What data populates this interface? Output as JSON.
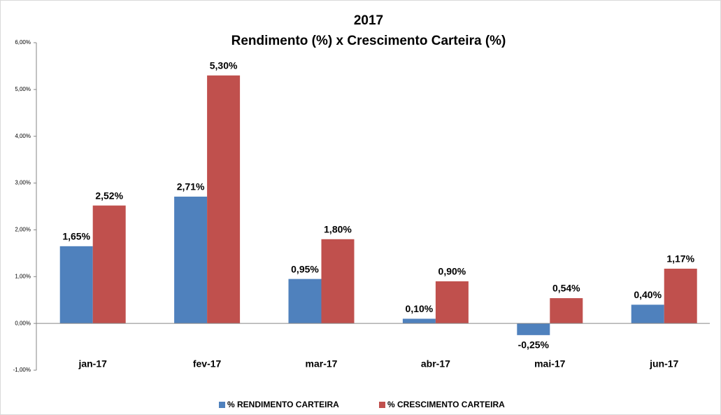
{
  "chart_data": {
    "type": "bar",
    "title": "2017",
    "subtitle": "Rendimento (%)  x  Crescimento Carteira (%)",
    "categories": [
      "jan-17",
      "fev-17",
      "mar-17",
      "abr-17",
      "mai-17",
      "jun-17"
    ],
    "series": [
      {
        "name": "% RENDIMENTO CARTEIRA",
        "color": "#4f81bd",
        "values": [
          1.65,
          2.71,
          0.95,
          0.1,
          -0.25,
          0.4
        ],
        "value_labels": [
          "1,65%",
          "2,71%",
          "0,95%",
          "0,10%",
          "-0,25%",
          "0,40%"
        ]
      },
      {
        "name": "% CRESCIMENTO CARTEIRA",
        "color": "#c0504d",
        "values": [
          2.52,
          5.3,
          1.8,
          0.9,
          0.54,
          1.17
        ],
        "value_labels": [
          "2,52%",
          "5,30%",
          "1,80%",
          "0,90%",
          "0,54%",
          "1,17%"
        ]
      }
    ],
    "ylim": [
      -1,
      6
    ],
    "yticks": [
      {
        "value": -1,
        "label": "-1,00%"
      },
      {
        "value": 0,
        "label": "0,00%"
      },
      {
        "value": 1,
        "label": "1,00%"
      },
      {
        "value": 2,
        "label": "2,00%"
      },
      {
        "value": 3,
        "label": "3,00%"
      },
      {
        "value": 4,
        "label": "4,00%"
      },
      {
        "value": 5,
        "label": "5,00%"
      },
      {
        "value": 6,
        "label": "6,00%"
      }
    ],
    "grid": false,
    "legend": "bottom"
  }
}
